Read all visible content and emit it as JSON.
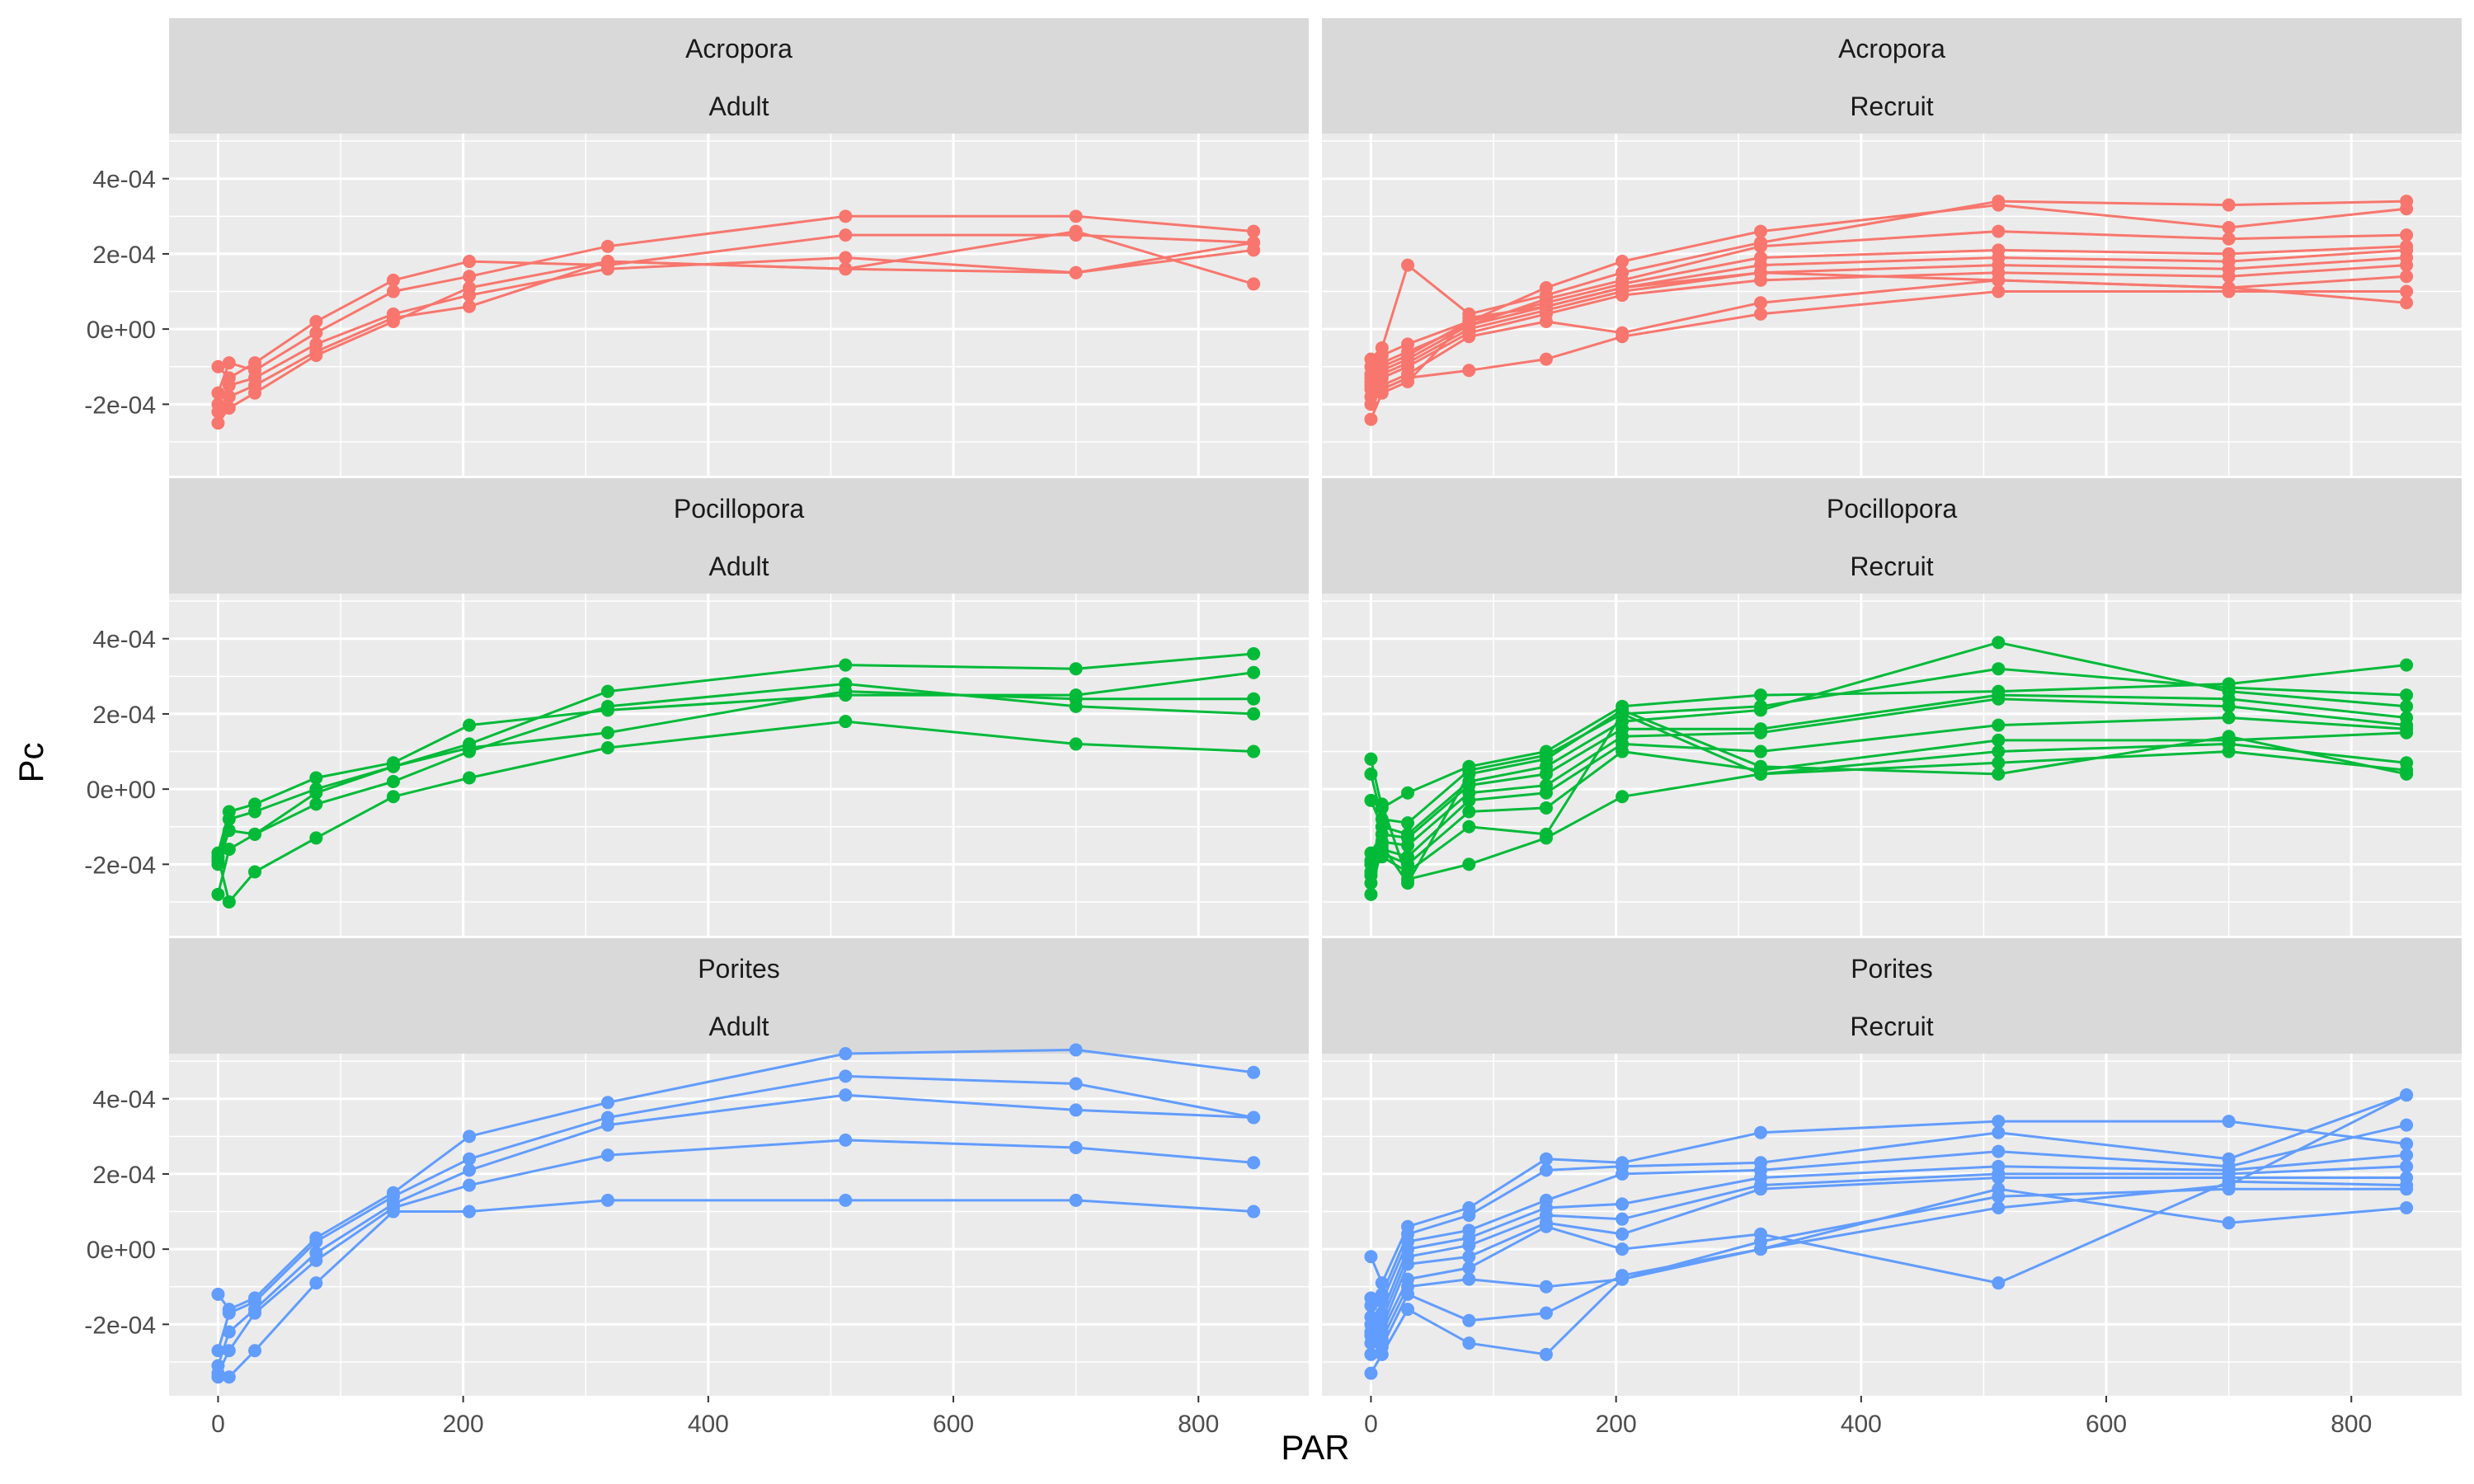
{
  "chart_data": {
    "type": "line",
    "xlabel": "PAR",
    "ylabel": "Pc",
    "xlim": [
      -40,
      890
    ],
    "x_ticks": [
      0,
      200,
      400,
      600,
      800
    ],
    "x_tick_labels": [
      "0",
      "200",
      "400",
      "600",
      "800"
    ],
    "y_ticks": [
      -0.0002,
      0,
      0.0002,
      0.0004
    ],
    "y_tick_labels": [
      "-2e-04",
      "0e+00",
      "2e-04",
      "4e-04"
    ],
    "ylim": [
      -0.00039,
      0.00052
    ],
    "grid": true,
    "legend": "none",
    "colors": {
      "Acropora": "#F8766D",
      "Pocillopora": "#00BA38",
      "Porites": "#619CFF"
    },
    "x": [
      0,
      9,
      30,
      80,
      143,
      205,
      318,
      512,
      700,
      845
    ],
    "panels": [
      {
        "species": "Acropora",
        "stage": "Adult",
        "series": [
          {
            "values": [
              -0.0001,
              -0.00013,
              -9e-05,
              2e-05,
              0.00013,
              0.00018,
              0.00017,
              0.00025,
              0.00025,
              0.00023
            ]
          },
          {
            "values": [
              -0.00017,
              -9e-05,
              -0.00011,
              -1e-05,
              0.0001,
              0.00014,
              0.00022,
              0.0003,
              0.0003,
              0.00026
            ]
          },
          {
            "values": [
              -0.0002,
              -0.00015,
              -0.00013,
              -4e-05,
              4e-05,
              9e-05,
              0.00016,
              0.00019,
              0.00015,
              0.00021
            ]
          },
          {
            "values": [
              -0.00022,
              -0.00018,
              -0.00015,
              -6e-05,
              3e-05,
              6e-05,
              0.00018,
              0.00016,
              0.00015,
              0.00023
            ]
          },
          {
            "values": [
              -0.00025,
              -0.00021,
              -0.00017,
              -7e-05,
              2e-05,
              0.00011,
              0.00018,
              0.00016,
              0.00026,
              0.00012
            ]
          }
        ]
      },
      {
        "species": "Acropora",
        "stage": "Recruit",
        "series": [
          {
            "values": [
              -8e-05,
              -5e-05,
              0.00017,
              4e-05,
              9e-05,
              0.00015,
              0.00023,
              0.00034,
              0.00033,
              0.00034
            ]
          },
          {
            "values": [
              -0.0001,
              -7e-05,
              -4e-05,
              2e-05,
              0.00011,
              0.00018,
              0.00026,
              0.00033,
              0.00027,
              0.00032
            ]
          },
          {
            "values": [
              -0.00012,
              -9e-05,
              -6e-05,
              1e-05,
              8e-05,
              0.00013,
              0.00022,
              0.00026,
              0.00024,
              0.00025
            ]
          },
          {
            "values": [
              -0.00013,
              -0.0001,
              -7e-05,
              2e-05,
              7e-05,
              0.00012,
              0.00019,
              0.00021,
              0.0002,
              0.00022
            ]
          },
          {
            "values": [
              -0.00014,
              -0.00011,
              -8e-05,
              1e-05,
              6e-05,
              0.00011,
              0.00017,
              0.00019,
              0.00018,
              0.00021
            ]
          },
          {
            "values": [
              -0.00015,
              -0.00012,
              -9e-05,
              0.0,
              5e-05,
              0.0001,
              0.00015,
              0.00017,
              0.00016,
              0.00019
            ]
          },
          {
            "values": [
              -0.00016,
              -0.00013,
              -0.0001,
              -1e-05,
              4e-05,
              9e-05,
              0.00013,
              0.00015,
              0.00014,
              0.00017
            ]
          },
          {
            "values": [
              -0.00018,
              -0.00015,
              -0.00012,
              -2e-05,
              2e-05,
              -1e-05,
              7e-05,
              0.00013,
              0.00011,
              0.00014
            ]
          },
          {
            "values": [
              -0.0002,
              -0.00016,
              -0.00013,
              -0.00011,
              -8e-05,
              -2e-05,
              4e-05,
              0.0001,
              0.0001,
              0.0001
            ]
          },
          {
            "values": [
              -0.00024,
              -0.00017,
              -0.00014,
              3e-05,
              6e-05,
              0.00011,
              0.00015,
              0.00013,
              0.00011,
              7e-05
            ]
          }
        ]
      },
      {
        "species": "Pocillopora",
        "stage": "Adult",
        "series": [
          {
            "values": [
              -0.00017,
              -6e-05,
              -4e-05,
              3e-05,
              7e-05,
              0.00017,
              0.00021,
              0.00025,
              0.00025,
              0.00031
            ]
          },
          {
            "values": [
              -0.00019,
              -8e-05,
              -6e-05,
              0.0,
              6e-05,
              0.00012,
              0.00026,
              0.00033,
              0.00032,
              0.00036
            ]
          },
          {
            "values": [
              -0.0002,
              -0.00011,
              -0.00012,
              -4e-05,
              2e-05,
              0.0001,
              0.00022,
              0.00028,
              0.00022,
              0.0002
            ]
          },
          {
            "values": [
              -0.00028,
              -0.00016,
              -0.00012,
              -1e-05,
              6e-05,
              0.00011,
              0.00015,
              0.00026,
              0.00024,
              0.00024
            ]
          },
          {
            "values": [
              -0.00018,
              -0.0003,
              -0.00022,
              -0.00013,
              -2e-05,
              3e-05,
              0.00011,
              0.00018,
              0.00012,
              0.0001
            ]
          }
        ]
      },
      {
        "species": "Pocillopora",
        "stage": "Recruit",
        "series": [
          {
            "values": [
              8e-05,
              -5e-05,
              -1e-05,
              6e-05,
              0.0001,
              0.00022,
              0.00025,
              0.00026,
              0.00028,
              0.00033
            ]
          },
          {
            "values": [
              4e-05,
              -8e-05,
              -9e-05,
              5e-05,
              9e-05,
              0.0002,
              0.00022,
              0.00032,
              0.00027,
              0.00025
            ]
          },
          {
            "values": [
              -3e-05,
              -0.0001,
              -0.00012,
              2e-05,
              6e-05,
              0.00018,
              0.00021,
              0.00039,
              0.00026,
              0.00022
            ]
          },
          {
            "values": [
              -0.00017,
              -0.00012,
              -0.00013,
              1e-05,
              4e-05,
              0.00016,
              0.00016,
              0.00025,
              0.00024,
              0.00019
            ]
          },
          {
            "values": [
              -0.00019,
              -0.00014,
              -0.00015,
              -1e-05,
              1e-05,
              0.00014,
              0.00015,
              0.00024,
              0.00022,
              0.00017
            ]
          },
          {
            "values": [
              -0.0002,
              -0.00016,
              -0.00018,
              -3e-05,
              -1e-05,
              0.00012,
              0.0001,
              0.00017,
              0.00019,
              0.00016
            ]
          },
          {
            "values": [
              -0.00022,
              -0.00017,
              -0.0002,
              -6e-05,
              -5e-05,
              0.0001,
              5e-05,
              0.00013,
              0.00013,
              0.00015
            ]
          },
          {
            "values": [
              -0.00023,
              -0.00018,
              -0.00022,
              -0.0001,
              -0.00012,
              0.0002,
              4e-05,
              0.0001,
              0.00012,
              7e-05
            ]
          },
          {
            "values": [
              -0.00025,
              -4e-05,
              -0.00024,
              -0.0002,
              -0.00013,
              -2e-05,
              4e-05,
              7e-05,
              0.0001,
              5e-05
            ]
          },
          {
            "values": [
              -0.00028,
              -0.00015,
              -0.00025,
              4e-05,
              8e-05,
              0.00021,
              6e-05,
              4e-05,
              0.00014,
              4e-05
            ]
          }
        ]
      },
      {
        "species": "Porites",
        "stage": "Adult",
        "series": [
          {
            "values": [
              -0.00012,
              -0.00016,
              -0.00013,
              3e-05,
              0.00015,
              0.0003,
              0.00039,
              0.00052,
              0.00053,
              0.00047
            ]
          },
          {
            "values": [
              -0.00027,
              -0.00017,
              -0.00014,
              2e-05,
              0.00014,
              0.00024,
              0.00035,
              0.00046,
              0.00044,
              0.00035
            ]
          },
          {
            "values": [
              -0.00031,
              -0.00022,
              -0.00016,
              -1e-05,
              0.00012,
              0.00021,
              0.00033,
              0.00041,
              0.00037,
              0.00035
            ]
          },
          {
            "values": [
              -0.00033,
              -0.00027,
              -0.00017,
              -3e-05,
              0.00011,
              0.00017,
              0.00025,
              0.00029,
              0.00027,
              0.00023
            ]
          },
          {
            "values": [
              -0.00034,
              -0.00034,
              -0.00027,
              -9e-05,
              0.0001,
              0.0001,
              0.00013,
              0.00013,
              0.00013,
              0.0001
            ]
          }
        ]
      },
      {
        "species": "Porites",
        "stage": "Recruit",
        "series": [
          {
            "values": [
              -2e-05,
              -9e-05,
              6e-05,
              0.00011,
              0.00024,
              0.00023,
              0.00031,
              0.00034,
              0.00034,
              0.00028
            ]
          },
          {
            "values": [
              -0.00013,
              -0.00012,
              4e-05,
              9e-05,
              0.00021,
              0.00022,
              0.00023,
              0.00031,
              0.00024,
              0.00041
            ]
          },
          {
            "values": [
              -0.00015,
              -0.00014,
              2e-05,
              5e-05,
              0.00013,
              0.0002,
              0.00021,
              0.00026,
              0.00022,
              0.00033
            ]
          },
          {
            "values": [
              -0.00018,
              -0.00017,
              0.0,
              3e-05,
              0.00011,
              0.00012,
              0.00019,
              0.00022,
              0.00021,
              0.00025
            ]
          },
          {
            "values": [
              -0.0002,
              -0.00019,
              -2e-05,
              1e-05,
              9e-05,
              8e-05,
              0.00017,
              0.0002,
              0.0002,
              0.00022
            ]
          },
          {
            "values": [
              -0.00022,
              -0.00021,
              -4e-05,
              -2e-05,
              7e-05,
              4e-05,
              0.00016,
              0.00019,
              0.00019,
              0.00019
            ]
          },
          {
            "values": [
              -0.00023,
              -0.00022,
              -8e-05,
              -5e-05,
              6e-05,
              0.0,
              4e-05,
              -9e-05,
              0.00018,
              0.00017
            ]
          },
          {
            "values": [
              -0.00025,
              -0.00024,
              -0.0001,
              -8e-05,
              -0.0001,
              -8e-05,
              2e-05,
              0.00014,
              0.00016,
              0.00016
            ]
          },
          {
            "values": [
              -0.00028,
              -0.00026,
              -0.00012,
              -0.00019,
              -0.00017,
              -7e-05,
              0.0,
              0.00011,
              0.00017,
              0.00041
            ]
          },
          {
            "values": [
              -0.00033,
              -0.00028,
              -0.00016,
              -0.00025,
              -0.00028,
              -8e-05,
              0.0,
              0.00016,
              7e-05,
              0.00011
            ]
          }
        ]
      }
    ]
  }
}
